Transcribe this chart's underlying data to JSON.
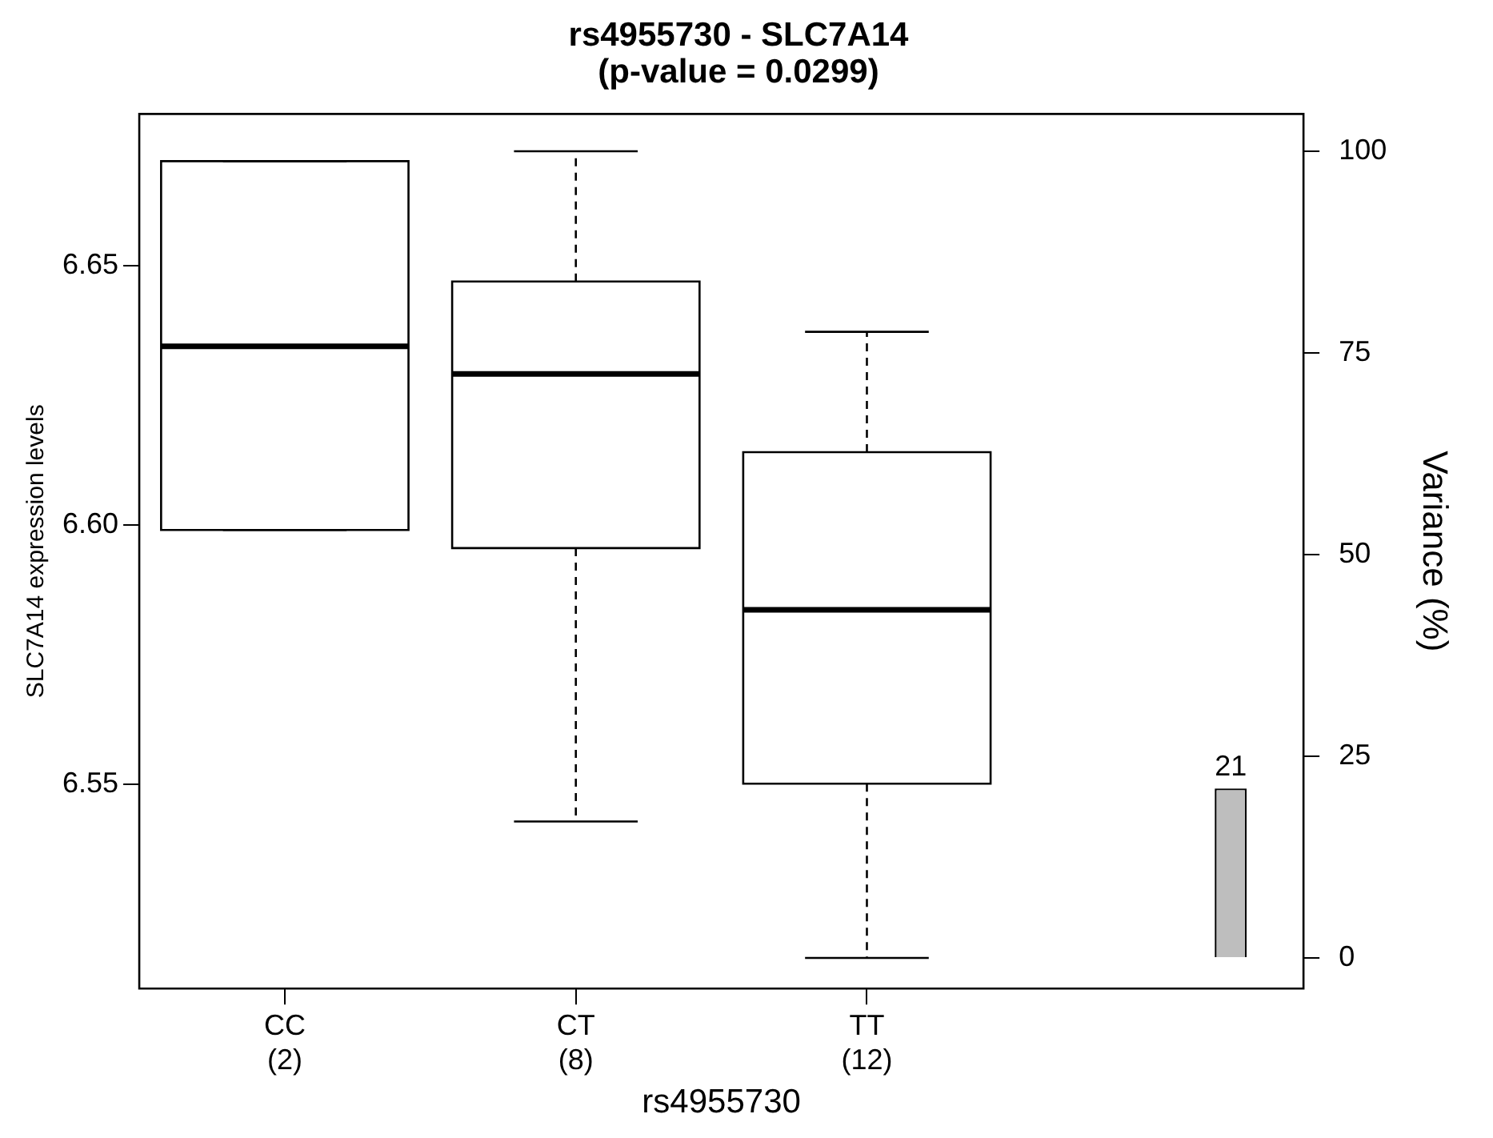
{
  "chart_data": {
    "type": "box",
    "title": "rs4955730 - SLC7A14\n(p-value = 0.0299)",
    "xlabel": "rs4955730",
    "ylabel": "SLC7A14 expression levels",
    "y2label": "Variance (%)",
    "categories": [
      "CC\n(2)",
      "CT\n(8)",
      "TT\n(12)",
      null
    ],
    "ylim": [
      6.5107,
      6.6793
    ],
    "yticks": [
      {
        "value": 6.55,
        "label": "6.55"
      },
      {
        "value": 6.6,
        "label": "6.60"
      },
      {
        "value": 6.65,
        "label": "6.65"
      }
    ],
    "y2lim": [
      -3.8,
      104.6
    ],
    "y2ticks": [
      0,
      25,
      50,
      75,
      100
    ],
    "grid": false,
    "legend": false,
    "series": [
      {
        "color": "#000000",
        "line_style": "dashed",
        "boxes": [
          {
            "low": 6.5991,
            "q1": 6.5991,
            "median": 6.6345,
            "q3": 6.6702,
            "high": 6.6702
          },
          {
            "low": 6.5429,
            "q1": 6.5956,
            "median": 6.6292,
            "q3": 6.647,
            "high": 6.6721
          },
          {
            "low": 6.5166,
            "q1": 6.5502,
            "median": 6.5837,
            "q3": 6.6141,
            "high": 6.6373
          },
          null
        ]
      },
      {
        "type": "bar",
        "axis": "y2",
        "color": "#bebebe",
        "values": [
          null,
          null,
          null,
          21
        ],
        "value_labels": [
          null,
          null,
          null,
          "21"
        ]
      }
    ]
  }
}
